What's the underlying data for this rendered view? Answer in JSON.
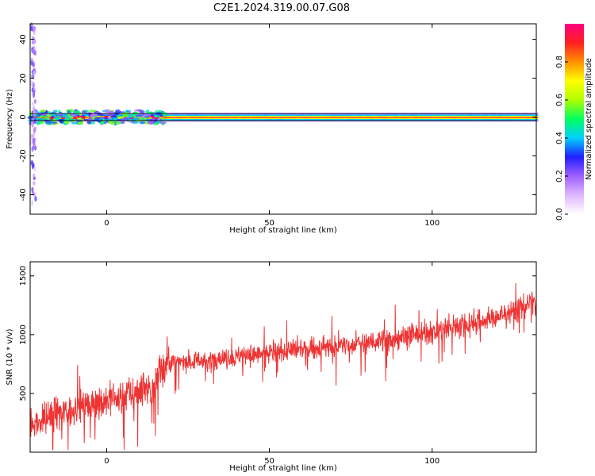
{
  "title": "C2E1.2024.319.00.07.G08",
  "chart_data": [
    {
      "type": "heatmap",
      "xlabel": "Height of straight line (km)",
      "ylabel": "Frequency (Hz)",
      "xlim": [
        -23.5,
        132
      ],
      "ylim": [
        -50,
        48
      ],
      "xticks": [
        0,
        50,
        100
      ],
      "yticks": [
        -40,
        -20,
        0,
        20,
        40
      ],
      "ytick_labels": [
        "-40",
        "-20",
        "0",
        "20",
        "40"
      ],
      "colorbar": {
        "label": "Normalized spectral amplitude",
        "range": [
          0,
          1
        ],
        "ticks": [
          0.0,
          0.2,
          0.4,
          0.6,
          0.8
        ],
        "tick_labels": [
          "0.0",
          "0.2",
          "0.4",
          "0.6",
          "0.8"
        ],
        "colormap": [
          "#ffffff",
          "#e0b8ff",
          "#a060ff",
          "#2020ff",
          "#00d0ff",
          "#00ff60",
          "#b0ff00",
          "#ffff00",
          "#ff9000",
          "#ff2020",
          "#ff0080"
        ]
      },
      "features": {
        "signal_band": {
          "x_start": -23.5,
          "x_end": 132,
          "freq_center": 0,
          "freq_halfwidth": 1.8
        },
        "noisy_band": {
          "x_start": -23.5,
          "x_end": 18,
          "freq_halfwidth": 3.5
        },
        "vertical_scatter_x": -22.5
      }
    },
    {
      "type": "line",
      "xlabel": "Height of straight line (km)",
      "ylabel": "SNR (10 * v/v)",
      "xlim": [
        -23.5,
        132
      ],
      "ylim": [
        0,
        1620
      ],
      "xticks": [
        0,
        50,
        100
      ],
      "yticks": [
        500,
        1000,
        1500
      ],
      "color": "#ee3333",
      "trend": {
        "x": [
          -23,
          -10,
          0,
          10,
          15,
          16,
          20,
          40,
          60,
          80,
          100,
          120,
          131
        ],
        "y": [
          240,
          370,
          440,
          520,
          590,
          720,
          760,
          810,
          870,
          930,
          1020,
          1150,
          1280
        ]
      },
      "noise_amplitude": [
        {
          "x": -23,
          "amp": 180
        },
        {
          "x": 18,
          "amp": 200
        },
        {
          "x": 20,
          "amp": 110
        },
        {
          "x": 131,
          "amp": 140
        }
      ]
    }
  ]
}
